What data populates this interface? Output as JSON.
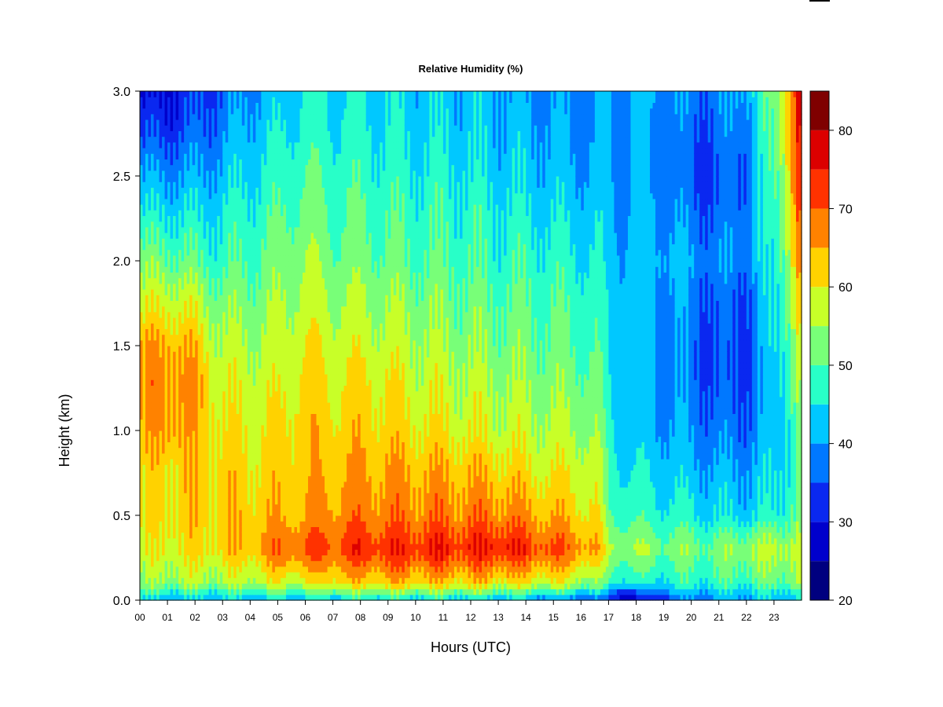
{
  "chart_data": {
    "type": "heatmap",
    "title": "Relative Humidity (%)",
    "xlabel": "Hours (UTC)",
    "ylabel": "Height (km)",
    "x_ticks": [
      "00",
      "01",
      "02",
      "03",
      "04",
      "05",
      "06",
      "07",
      "08",
      "09",
      "10",
      "11",
      "12",
      "13",
      "14",
      "15",
      "16",
      "17",
      "18",
      "19",
      "20",
      "21",
      "22",
      "23"
    ],
    "x_range": [
      0,
      24
    ],
    "y_ticks": [
      "0.0",
      "0.5",
      "1.0",
      "1.5",
      "2.0",
      "2.5",
      "3.0"
    ],
    "y_range": [
      0,
      3
    ],
    "colorbar": {
      "ticks": [
        "20",
        "30",
        "40",
        "50",
        "60",
        "70",
        "80"
      ],
      "range": [
        20,
        85
      ],
      "levels": [
        20,
        25,
        30,
        35,
        40,
        45,
        50,
        55,
        60,
        65,
        70,
        75,
        80,
        85
      ],
      "colors": [
        "#00007f",
        "#0000cc",
        "#0a28f0",
        "#0078ff",
        "#00c8ff",
        "#28ffc8",
        "#78ff78",
        "#c8ff28",
        "#ffd200",
        "#ff8200",
        "#ff3200",
        "#dc0000",
        "#7f0000"
      ]
    },
    "profile_hours": [
      0,
      1,
      2,
      3,
      4,
      5,
      6,
      7,
      8,
      9,
      10,
      11,
      12,
      13,
      14,
      15,
      16,
      16.6,
      17,
      18,
      19,
      20,
      21,
      22,
      23,
      23.9
    ],
    "profile_heights": [
      0.0,
      0.05,
      0.1,
      0.3,
      0.5,
      0.8,
      1.0,
      1.3,
      1.5,
      1.8,
      2.0,
      2.3,
      2.5,
      2.8,
      3.0
    ],
    "rh_profiles": [
      [
        42,
        47,
        52,
        57,
        59,
        60,
        63,
        65,
        64,
        56,
        52,
        44,
        40,
        32,
        28
      ],
      [
        42,
        48,
        55,
        60,
        62,
        63,
        67,
        68,
        66,
        58,
        52,
        45,
        40,
        33,
        30
      ],
      [
        42,
        48,
        55,
        61,
        62,
        63,
        64,
        66,
        63,
        56,
        50,
        44,
        40,
        35,
        33
      ],
      [
        42,
        48,
        55,
        62,
        63,
        62,
        60,
        58,
        56,
        52,
        48,
        45,
        42,
        38,
        36
      ],
      [
        42,
        48,
        56,
        64,
        63,
        61,
        60,
        58,
        56,
        52,
        50,
        47,
        45,
        42,
        40
      ],
      [
        43,
        50,
        58,
        69,
        64,
        62,
        60,
        58,
        56,
        54,
        52,
        49,
        47,
        44,
        42
      ],
      [
        43,
        50,
        59,
        71,
        65,
        63,
        64,
        62,
        60,
        57,
        55,
        52,
        50,
        47,
        46
      ],
      [
        44,
        52,
        61,
        72,
        67,
        64,
        62,
        60,
        58,
        55,
        52,
        50,
        48,
        46,
        45
      ],
      [
        45,
        53,
        62,
        74,
        68,
        65,
        63,
        61,
        58,
        55,
        52,
        50,
        48,
        46,
        45
      ],
      [
        45,
        54,
        63,
        74,
        68,
        65,
        62,
        60,
        57,
        54,
        51,
        49,
        47,
        45,
        44
      ],
      [
        44,
        53,
        63,
        74,
        68,
        64,
        61,
        58,
        56,
        53,
        50,
        48,
        46,
        44,
        43
      ],
      [
        44,
        53,
        62,
        75,
        68,
        64,
        60,
        57,
        55,
        52,
        50,
        48,
        46,
        44,
        43
      ],
      [
        43,
        52,
        62,
        74,
        68,
        63,
        59,
        56,
        54,
        51,
        49,
        47,
        45,
        43,
        42
      ],
      [
        42,
        51,
        61,
        76,
        68,
        62,
        58,
        55,
        53,
        50,
        48,
        46,
        44,
        42,
        41
      ],
      [
        41,
        50,
        60,
        73,
        66,
        60,
        57,
        54,
        52,
        50,
        48,
        45,
        43,
        41,
        40
      ],
      [
        39,
        48,
        58,
        71,
        64,
        59,
        56,
        53,
        51,
        49,
        47,
        44,
        42,
        40,
        39
      ],
      [
        37,
        46,
        56,
        68,
        62,
        58,
        55,
        52,
        50,
        48,
        46,
        43,
        41,
        39,
        38
      ],
      [
        36,
        44,
        52,
        65,
        60,
        57,
        54,
        51,
        49,
        47,
        45,
        43,
        41,
        39,
        38
      ],
      [
        32,
        38,
        48,
        56,
        50,
        48,
        46,
        45,
        44,
        43,
        42,
        41,
        40,
        40,
        40
      ],
      [
        26,
        34,
        45,
        55,
        48,
        44,
        42,
        41,
        41,
        42,
        42,
        41,
        40,
        40,
        41
      ],
      [
        34,
        40,
        46,
        53,
        47,
        43,
        41,
        40,
        40,
        41,
        42,
        40,
        39,
        39,
        40
      ],
      [
        38,
        42,
        47,
        53,
        46,
        41,
        39,
        37,
        37,
        38,
        40,
        37,
        35,
        36,
        38
      ],
      [
        40,
        43,
        48,
        52,
        44,
        40,
        37,
        34,
        34,
        35,
        38,
        35,
        34,
        36,
        38
      ],
      [
        41,
        44,
        49,
        56,
        44,
        40,
        37,
        35,
        35,
        36,
        40,
        39,
        38,
        40,
        42
      ],
      [
        42,
        45,
        50,
        57,
        46,
        43,
        42,
        42,
        43,
        44,
        45,
        47,
        48,
        50,
        52
      ],
      [
        44,
        48,
        55,
        58,
        52,
        50,
        52,
        55,
        58,
        62,
        66,
        70,
        73,
        75,
        76
      ]
    ]
  }
}
